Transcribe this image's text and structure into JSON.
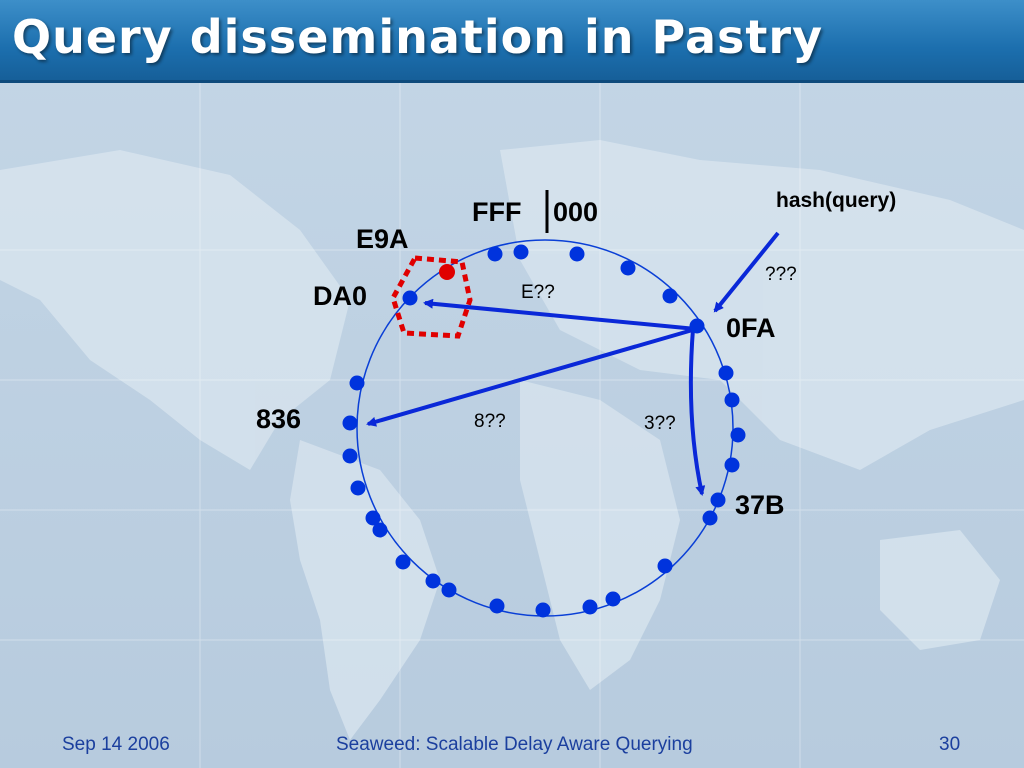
{
  "slide": {
    "title": "Query dissemination in Pastry",
    "footer_date": "Sep 14 2006",
    "footer_title": "Seaweed: Scalable Delay Aware Querying",
    "footer_page": "30"
  },
  "labels": {
    "fff": "FFF",
    "zero": "000",
    "e9a": "E9A",
    "da0": "DA0",
    "n836": "836",
    "n0fa": "0FA",
    "n37b": "37B",
    "hash": "hash(query)",
    "qqq": "???",
    "e_prefix": "E??",
    "p8": "8??",
    "p3": "3??"
  },
  "colors": {
    "node": "#0033dd",
    "ring": "#0a3fd6",
    "arrow": "#0a28d8",
    "highlight": "#e00000",
    "title_bg": "#1c6fae"
  }
}
